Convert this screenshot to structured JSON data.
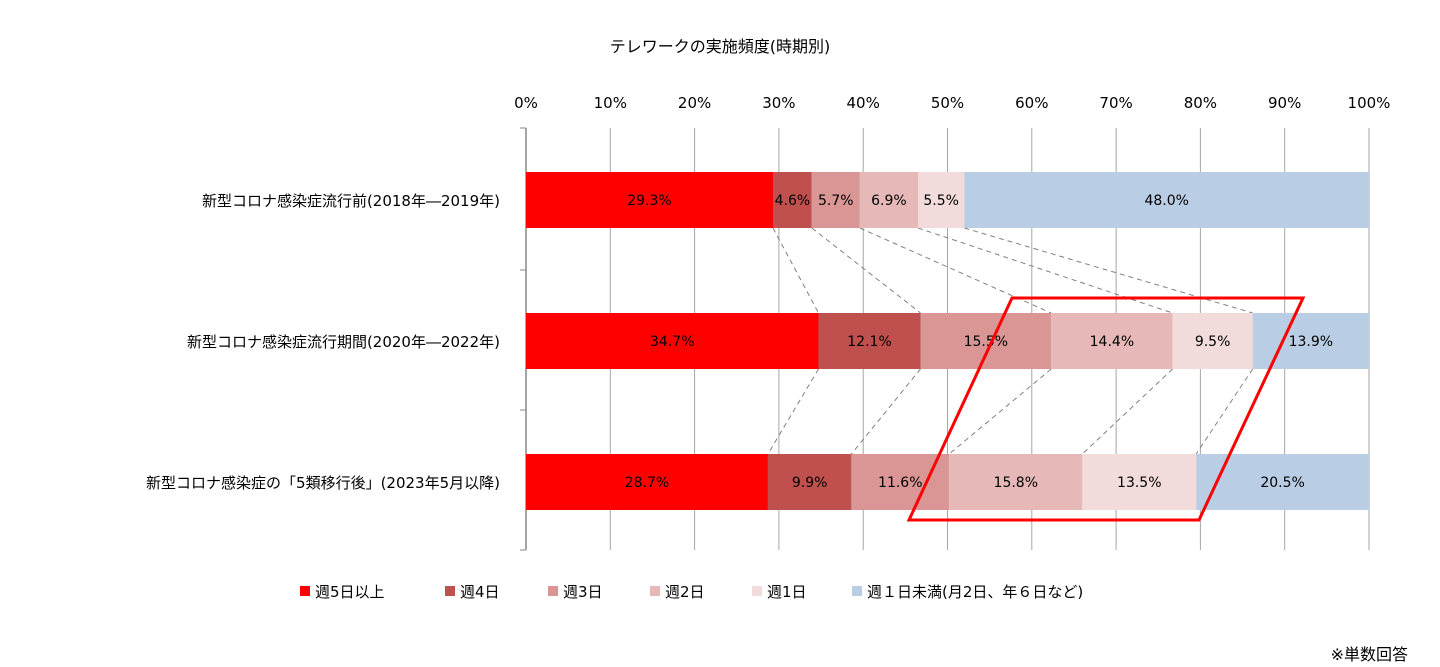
{
  "chart_data": {
    "type": "bar",
    "orientation": "horizontal-stacked-100",
    "title": "テレワークの実施頻度(時期別)",
    "xlim": [
      0,
      100
    ],
    "x_ticks": [
      "0%",
      "10%",
      "20%",
      "30%",
      "40%",
      "50%",
      "60%",
      "70%",
      "80%",
      "90%",
      "100%"
    ],
    "grid": true,
    "legend_position": "bottom",
    "categories": [
      "新型コロナ感染症流行前(2018年―2019年)",
      "新型コロナ感染症流行期間(2020年―2022年)",
      "新型コロナ感染症の「5類移行後」(2023年5月以降)"
    ],
    "series": [
      {
        "name": "週5日以上",
        "color": "#FF0000",
        "values": [
          29.3,
          34.7,
          28.7
        ],
        "labels": [
          "29.3%",
          "34.7%",
          "28.7%"
        ]
      },
      {
        "name": "週4日",
        "color": "#C0504D",
        "values": [
          4.6,
          12.1,
          9.9
        ],
        "labels": [
          "4.6%",
          "12.1%",
          "9.9%"
        ]
      },
      {
        "name": "週3日",
        "color": "#D99694",
        "values": [
          5.7,
          15.5,
          11.6
        ],
        "labels": [
          "5.7%",
          "15.5%",
          "11.6%"
        ]
      },
      {
        "name": "週2日",
        "color": "#E6B9B8",
        "values": [
          6.9,
          14.4,
          15.8
        ],
        "labels": [
          "6.9%",
          "14.4%",
          "15.8%"
        ]
      },
      {
        "name": "週1日",
        "color": "#F2DCDB",
        "values": [
          5.5,
          9.5,
          13.5
        ],
        "labels": [
          "5.5%",
          "9.5%",
          "13.5%"
        ]
      },
      {
        "name": "週１日未満(月2日、年６日など)",
        "color": "#B9CDE5",
        "values": [
          48.0,
          13.9,
          20.5
        ],
        "labels": [
          "48.0%",
          "13.9%",
          "20.5%"
        ]
      }
    ],
    "annotation": "red parallelogram highlighting 週3日–週1日 segments of last two periods",
    "note": "※単数回答"
  }
}
